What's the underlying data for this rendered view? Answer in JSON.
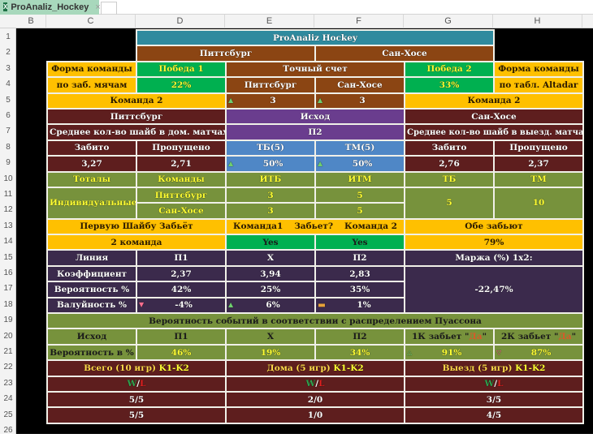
{
  "tab": {
    "title": "ProAnaliz_Hockey",
    "close": "×"
  },
  "columns": [
    "B",
    "C",
    "D",
    "E",
    "F",
    "G",
    "H"
  ],
  "rows": [
    "1",
    "2",
    "3",
    "4",
    "5",
    "6",
    "7",
    "8",
    "9",
    "10",
    "11",
    "12",
    "13",
    "14",
    "15",
    "16",
    "17",
    "18",
    "19",
    "20",
    "21",
    "22",
    "23",
    "24",
    "25",
    "26"
  ],
  "colors": {
    "title": "#2f8a9e",
    "brown": "#8b4513",
    "yellow": "#ffc000",
    "green": "#00b050",
    "maroon": "#5e1e1e",
    "purple": "#6a3d8e",
    "blue": "#4f87c6",
    "olive": "#77923c",
    "dark_purple": "#3b2a4c"
  },
  "title": "ProAnaliz Hockey",
  "team1": "Питтсбург",
  "team2": "Сан-Хосе",
  "form_left": [
    "Форма команды",
    "по заб. мячам"
  ],
  "form_right": [
    "Форма команды",
    "по табл. Altadar"
  ],
  "win1": {
    "label": "Победа 1",
    "value": "22%"
  },
  "win2": {
    "label": "Победа 2",
    "value": "33%"
  },
  "exact_score": {
    "label": "Точный счет",
    "team1": "Питтсбург",
    "team2": "Сан-Хосе",
    "score1": "3",
    "score2": "3"
  },
  "team_label_left": "Команда 2",
  "team_label_right": "Команда 2",
  "outcome": {
    "label": "Исход",
    "value": "П2"
  },
  "avg_home": "Среднее кол-во шайб в дом. матчах",
  "avg_away": "Среднее кол-во шайб в выезд. матчах",
  "stats": {
    "scored": "Забито",
    "conceded": "Пропущено",
    "tb": "ТБ(5)",
    "tm": "ТМ(5)",
    "home_scored": "3,27",
    "home_conceded": "2,71",
    "tb_val": "50%",
    "tm_val": "50%",
    "away_scored": "2,76",
    "away_conceded": "2,37"
  },
  "totals": {
    "h": [
      "Тоталы",
      "Команды",
      "ИТБ",
      "ИТМ",
      "ТБ",
      "ТМ"
    ],
    "individual": "Индивидуальные",
    "t1": "Питтсбург",
    "t2": "Сан-Хосе",
    "t1_itb": "3",
    "t1_itm": "5",
    "t2_itb": "3",
    "t2_itm": "5",
    "tb": "5",
    "tm": "10"
  },
  "first_goal": {
    "label": "Первую Шайбу Забьёт",
    "value": "2 команда"
  },
  "will_score": {
    "k1": "Команда1",
    "q": "Забьет?",
    "k2": "Команда 2",
    "v1": "Yes",
    "v2": "Yes"
  },
  "both_score": {
    "label": "Обе забьют",
    "value": "79%"
  },
  "line": {
    "h": [
      "Линия",
      "П1",
      "X",
      "П2"
    ],
    "coef": [
      "Коэффициент",
      "2,37",
      "3,94",
      "2,83"
    ],
    "prob": [
      "Вероятность %",
      "42%",
      "25%",
      "35%"
    ],
    "value": [
      "Валуйность %",
      "-4%",
      "6%",
      "1%"
    ],
    "margin_label": "Маржа (%) 1x2:",
    "margin": "-22,47%"
  },
  "poisson": {
    "title": "Вероятность событий в соответствии с распределением Пуассона",
    "h": [
      "Исход",
      "П1",
      "X",
      "П2"
    ],
    "k1_pre": "1К забьет \"",
    "k2_pre": "2К забьет \"",
    "da": "Да",
    "q": "\"",
    "row_label": "Вероятность в %",
    "vals": [
      "46%",
      "19%",
      "34%",
      "91%",
      "87%"
    ]
  },
  "games": {
    "total": "Всего (10 игр) ",
    "home": "Дома (5 игр) ",
    "away": "Выезд (5 игр) ",
    "k": "K1-K2",
    "w": "W",
    "slash": "/",
    "l": "L",
    "r24": [
      "5/5",
      "2/0",
      "3/5"
    ],
    "r25": [
      "5/5",
      "1/0",
      "4/5"
    ]
  }
}
